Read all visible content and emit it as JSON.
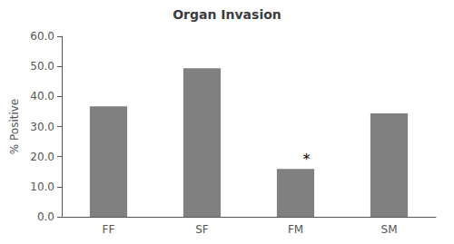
{
  "chart_data": {
    "type": "bar",
    "title": "Organ Invasion",
    "categories": [
      "FF",
      "SF",
      "FM",
      "SM"
    ],
    "values": [
      36.7,
      49.4,
      15.9,
      34.4
    ],
    "color": "#808080",
    "ylabel": "% Positive",
    "ylim": [
      0,
      60.0
    ],
    "yticks": [
      {
        "value": 0.0,
        "label": "0.0"
      },
      {
        "value": 10.0,
        "label": "10.0"
      },
      {
        "value": 20.0,
        "label": "20.0"
      },
      {
        "value": 30.0,
        "label": "30.0"
      },
      {
        "value": 40.0,
        "label": "40.0"
      },
      {
        "value": 50.0,
        "label": "50.0"
      },
      {
        "value": 60.0,
        "label": "60.0"
      }
    ],
    "annotations": [
      {
        "text": "*",
        "category": "FM"
      }
    ],
    "grid": false
  }
}
